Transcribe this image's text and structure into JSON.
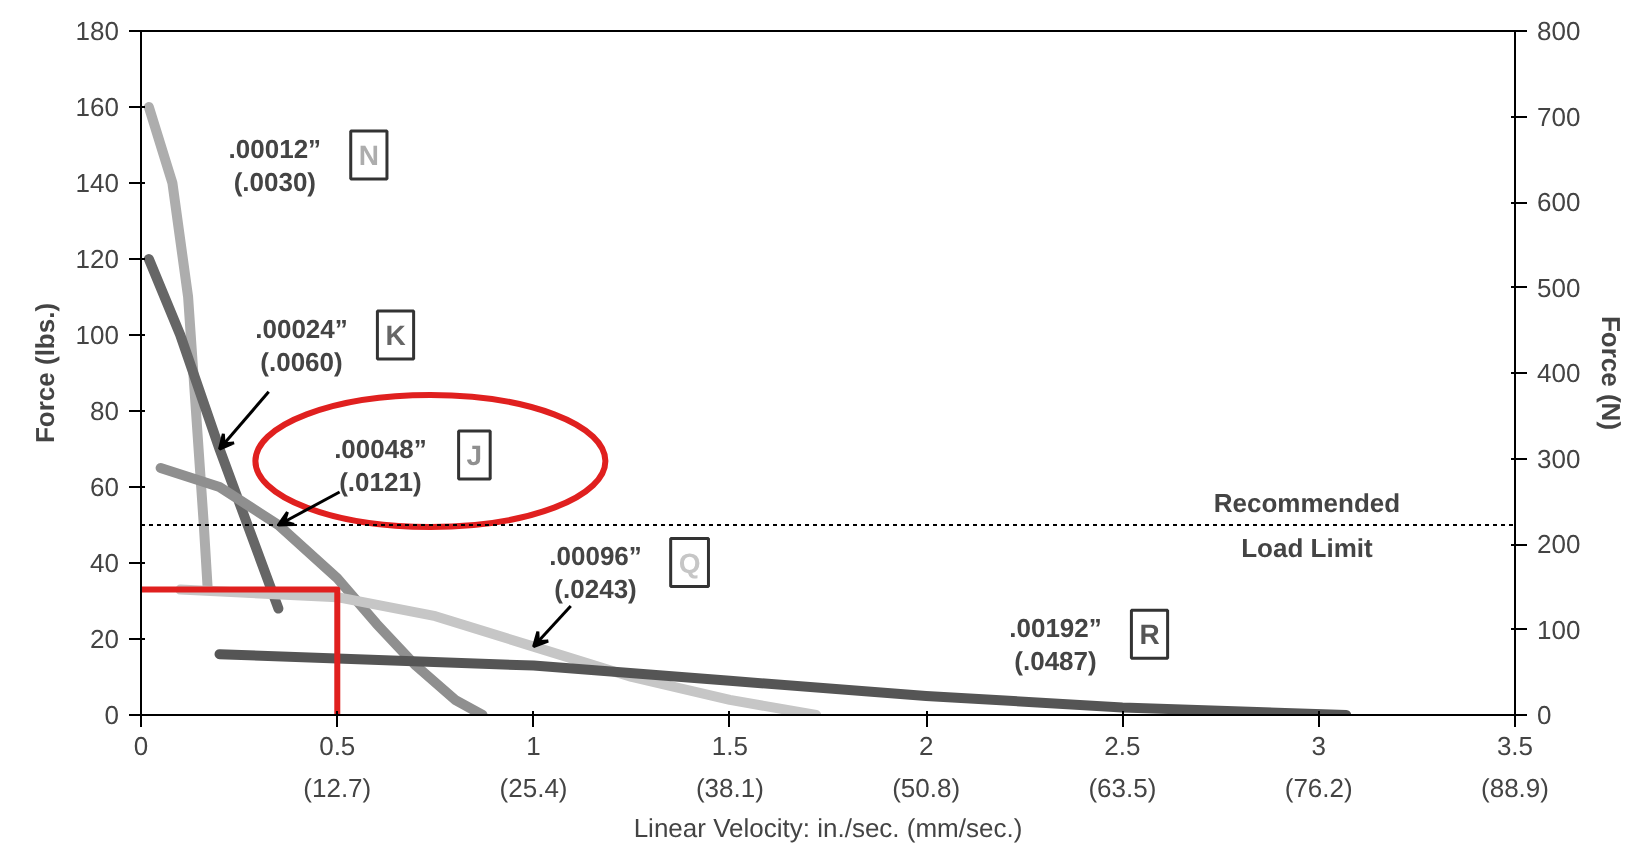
{
  "chart_data": {
    "type": "line",
    "xlabel": "Linear Velocity: in./sec. (mm/sec.)",
    "ylabel": "Force (lbs.)",
    "y2label": "Force (N)",
    "xlim": [
      0,
      3.5
    ],
    "ylim": [
      0,
      180
    ],
    "y2lim": [
      0,
      800
    ],
    "xticks": [
      0,
      0.5,
      1,
      1.5,
      2,
      2.5,
      3,
      3.5
    ],
    "x2lim": [
      0,
      88.9
    ],
    "x2ticks": [
      {
        "value": 12.7,
        "label": "(12.7)"
      },
      {
        "value": 25.4,
        "label": "(25.4)"
      },
      {
        "value": 38.1,
        "label": "(38.1)"
      },
      {
        "value": 50.8,
        "label": "(50.8)"
      },
      {
        "value": 63.5,
        "label": "(63.5)"
      },
      {
        "value": 76.2,
        "label": "(76.2)"
      },
      {
        "value": 88.9,
        "label": "(88.9)"
      }
    ],
    "yticks": [
      0,
      20,
      40,
      60,
      80,
      100,
      120,
      140,
      160,
      180
    ],
    "y2ticks": [
      0,
      100,
      200,
      300,
      400,
      500,
      600,
      700,
      800
    ],
    "series": [
      {
        "name": "N",
        "color": "#adadad",
        "x": [
          0.02,
          0.08,
          0.12,
          0.14,
          0.16,
          0.17
        ],
        "values": [
          160,
          140,
          110,
          80,
          50,
          33
        ]
      },
      {
        "name": "K",
        "color": "#666666",
        "x": [
          0.02,
          0.1,
          0.2,
          0.35
        ],
        "values": [
          120,
          100,
          70,
          28
        ]
      },
      {
        "name": "J",
        "color": "#8f8f8f",
        "x": [
          0.05,
          0.2,
          0.35,
          0.5,
          0.6,
          0.7,
          0.8,
          0.87
        ],
        "values": [
          65,
          60,
          50,
          36,
          24,
          13,
          4,
          0
        ]
      },
      {
        "name": "Q",
        "color": "#c6c6c6",
        "x": [
          0.1,
          0.5,
          0.75,
          1.0,
          1.25,
          1.5,
          1.72
        ],
        "values": [
          33,
          31,
          26,
          18,
          10,
          4,
          0
        ]
      },
      {
        "name": "R",
        "color": "#555555",
        "x": [
          0.2,
          1,
          1.5,
          2,
          2.5,
          3.07
        ],
        "values": [
          16,
          13,
          9,
          5,
          2,
          0
        ]
      },
      {
        "type": "line",
        "color": "#e0201f",
        "x": [
          0,
          0.5,
          0.5
        ],
        "values": [
          33,
          33,
          0
        ]
      }
    ],
    "annotations": [
      ".00012”\n(.0030)",
      {
        "text": ".00024”\n(.0060)",
        "x": 0.2,
        "y": 70
      },
      {
        "text": ".00048”\n(.0121)",
        "x": 0.35,
        "y": 50
      },
      {
        "text": ".00096”\n(.0243)",
        "x": 1.0,
        "y": 18
      },
      ".00192”\n(.0487)"
    ],
    "ref_lines": [
      {
        "axis": "y",
        "value": 50,
        "label": "Recommended\nLoad Limit",
        "color": "#000000",
        "line_style": "dotted"
      }
    ]
  }
}
